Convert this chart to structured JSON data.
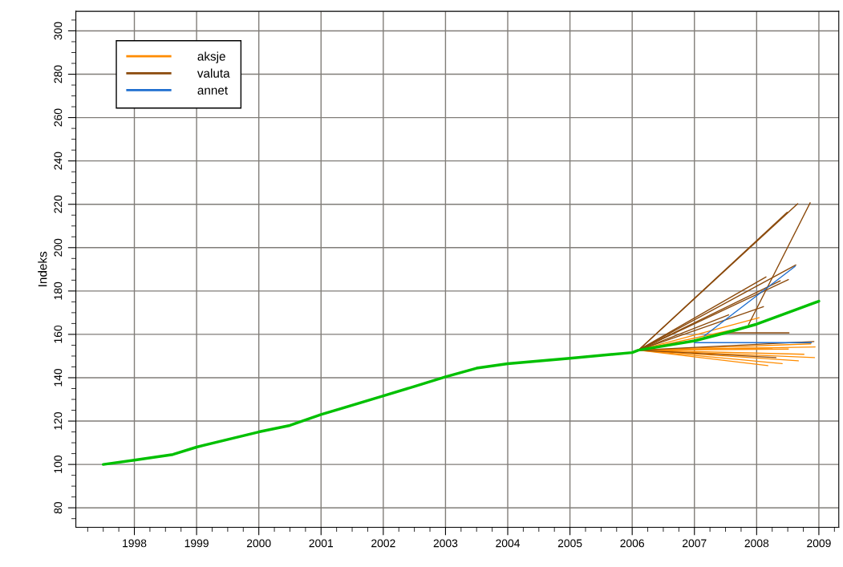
{
  "chart_data": {
    "type": "line",
    "ylabel": "Indeks",
    "xlim": [
      1997.06,
      2009.32
    ],
    "ylim": [
      71,
      309
    ],
    "xticks": [
      1998,
      1999,
      2000,
      2001,
      2002,
      2003,
      2004,
      2005,
      2006,
      2007,
      2008,
      2009
    ],
    "yticks": [
      80,
      100,
      120,
      140,
      160,
      180,
      200,
      220,
      240,
      260,
      280,
      300
    ],
    "grid": true,
    "legend": "top left",
    "series": [
      {
        "color": "#00c000",
        "x": [
          1997.5,
          1998,
          1998.62,
          1999,
          2000,
          2000.5,
          2001,
          2002,
          2002.5,
          2003,
          2003.5,
          2004,
          2005,
          2006,
          2006.1,
          2007,
          2007.5,
          2008,
          2008.5,
          2009
        ],
        "values": [
          100,
          102,
          104.6,
          108,
          115,
          118,
          123,
          131.6,
          136,
          140.4,
          144.4,
          146.5,
          149,
          151.6,
          152.7,
          157,
          160.7,
          164.7,
          170,
          175.3
        ]
      },
      {
        "name": "aksje",
        "color": "#ff8c00",
        "x": [
          2006.1,
          2008.04
        ],
        "values": [
          152.7,
          167.7
        ]
      },
      {
        "color": "#ff8c00",
        "x": [
          2006.1,
          2007.65
        ],
        "values": [
          152.7,
          162.3
        ]
      },
      {
        "color": "#ff8c00",
        "x": [
          2006.1,
          2008.94
        ],
        "values": [
          152.7,
          154.2
        ]
      },
      {
        "color": "#ff8c00",
        "x": [
          2006.1,
          2008.87
        ],
        "values": [
          152.7,
          155.6
        ]
      },
      {
        "color": "#ff8c00",
        "x": [
          2006.1,
          2008.93
        ],
        "values": [
          152.7,
          149.3
        ]
      },
      {
        "color": "#ff8c00",
        "x": [
          2006.1,
          2008.76
        ],
        "values": [
          152.7,
          150.8
        ]
      },
      {
        "color": "#ff8c00",
        "x": [
          2006.1,
          2008.67
        ],
        "values": [
          152.7,
          147.8
        ]
      },
      {
        "color": "#ff8c00",
        "x": [
          2006.1,
          2008.41
        ],
        "values": [
          152.7,
          146.5
        ]
      },
      {
        "color": "#ff8c00",
        "x": [
          2006.1,
          2008.18
        ],
        "values": [
          152.7,
          145.6
        ]
      },
      {
        "color": "#ff8c00",
        "x": [
          2006.1,
          2008.51
        ],
        "values": [
          152.7,
          153.2
        ]
      },
      {
        "color": "#ff8c00",
        "x": [
          2006.1,
          2008.25
        ],
        "values": [
          152.7,
          153.8
        ]
      },
      {
        "name": "valuta",
        "color": "#8b4a0c",
        "x": [
          2006.1,
          2008.66
        ],
        "values": [
          152.7,
          220.3
        ]
      },
      {
        "color": "#8b4a0c",
        "x": [
          2007.87,
          2008.86
        ],
        "values": [
          164.5,
          220.7
        ]
      },
      {
        "color": "#8b4a0c",
        "x": [
          2006.1,
          2008.49
        ],
        "values": [
          152.7,
          216.3
        ]
      },
      {
        "color": "#8b4a0c",
        "x": [
          2006.1,
          2008.63
        ],
        "values": [
          152.7,
          192
        ]
      },
      {
        "color": "#8b4a0c",
        "x": [
          2006.1,
          2008.15
        ],
        "values": [
          152.7,
          186.5
        ]
      },
      {
        "color": "#8b4a0c",
        "x": [
          2006.1,
          2008.38
        ],
        "values": [
          152.7,
          184.7
        ]
      },
      {
        "color": "#8b4a0c",
        "x": [
          2006.1,
          2008.51
        ],
        "values": [
          152.7,
          185.3
        ]
      },
      {
        "color": "#8b4a0c",
        "x": [
          2006.1,
          2008.11
        ],
        "values": [
          152.7,
          172.8
        ]
      },
      {
        "color": "#8b4a0c",
        "x": [
          2006.1,
          2007.55
        ],
        "values": [
          152.7,
          169
        ]
      },
      {
        "color": "#8b4a0c",
        "x": [
          2007.52,
          2008.52
        ],
        "values": [
          160.7,
          160.7
        ]
      },
      {
        "color": "#8b4a0c",
        "x": [
          2006.1,
          2008.92
        ],
        "values": [
          152.7,
          156.7
        ]
      },
      {
        "color": "#8b4a0c",
        "x": [
          2006.1,
          2008.31
        ],
        "values": [
          152.7,
          149.3
        ]
      },
      {
        "name": "annet",
        "color": "#1f6fd0",
        "x": [
          2007.16,
          2008.62
        ],
        "values": [
          159.3,
          191.4
        ]
      },
      {
        "color": "#1f6fd0",
        "x": [
          2007.0,
          2008.88
        ],
        "values": [
          156.2,
          156.2
        ]
      }
    ]
  }
}
